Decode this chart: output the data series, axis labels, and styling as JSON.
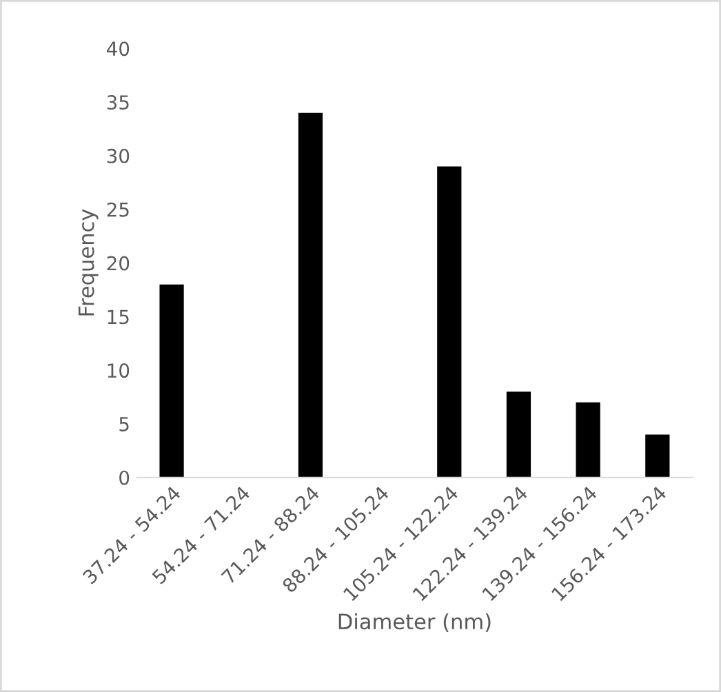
{
  "chart_data": {
    "type": "bar",
    "xlabel": "Diameter (nm)",
    "ylabel": "Frequency",
    "categories": [
      "37.24 - 54.24",
      "54.24 - 71.24",
      "71.24 - 88.24",
      "88.24 - 105.24",
      "105.24 - 122.24",
      "122.24 - 139.24",
      "139.24 - 156.24",
      "156.24 - 173.24"
    ],
    "values": [
      18,
      0,
      34,
      0,
      29,
      8,
      7,
      4
    ],
    "color": "#000000",
    "ylim": [
      0,
      40
    ],
    "yticks": [
      0,
      5,
      10,
      15,
      20,
      25,
      30,
      35,
      40
    ],
    "grid": false
  }
}
